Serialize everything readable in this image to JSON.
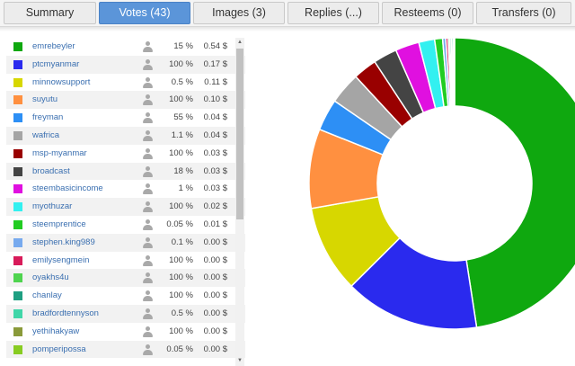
{
  "tabs": [
    {
      "label": "Summary",
      "active": false
    },
    {
      "label": "Votes (43)",
      "active": true
    },
    {
      "label": "Images (3)",
      "active": false
    },
    {
      "label": "Replies (...)",
      "active": false
    },
    {
      "label": "Resteems (0)",
      "active": false
    },
    {
      "label": "Transfers (0)",
      "active": false
    }
  ],
  "votes": [
    {
      "name": "emrebeyler",
      "percent": "15 %",
      "value": "0.54 $",
      "color": "#0fa80f",
      "user_icon": "user-icon"
    },
    {
      "name": "ptcmyanmar",
      "percent": "100 %",
      "value": "0.17 $",
      "color": "#2a2aee",
      "user_icon": "user-icon"
    },
    {
      "name": "minnowsupport",
      "percent": "0.5 %",
      "value": "0.11 $",
      "color": "#d7d700",
      "user_icon": "user-icon"
    },
    {
      "name": "suyutu",
      "percent": "100 %",
      "value": "0.10 $",
      "color": "#ff9040",
      "user_icon": "user-icon"
    },
    {
      "name": "freyman",
      "percent": "55 %",
      "value": "0.04 $",
      "color": "#2d8ff5",
      "user_icon": "user-icon"
    },
    {
      "name": "wafrica",
      "percent": "1.1 %",
      "value": "0.04 $",
      "color": "#a5a5a5",
      "user_icon": "user-icon"
    },
    {
      "name": "msp-myanmar",
      "percent": "100 %",
      "value": "0.03 $",
      "color": "#990000",
      "user_icon": "user-icon"
    },
    {
      "name": "broadcast",
      "percent": "18 %",
      "value": "0.03 $",
      "color": "#444444",
      "user_icon": "user-icon"
    },
    {
      "name": "steembasicincome",
      "percent": "1 %",
      "value": "0.03 $",
      "color": "#e010e0",
      "user_icon": "user-icon"
    },
    {
      "name": "myothuzar",
      "percent": "100 %",
      "value": "0.02 $",
      "color": "#33f0f0",
      "user_icon": "user-icon"
    },
    {
      "name": "steemprentice",
      "percent": "0.05 %",
      "value": "0.01 $",
      "color": "#22cc22",
      "user_icon": "user-icon"
    },
    {
      "name": "stephen.king989",
      "percent": "0.1 %",
      "value": "0.00 $",
      "color": "#77aaee",
      "user_icon": "user-icon"
    },
    {
      "name": "emilysengmein",
      "percent": "100 %",
      "value": "0.00 $",
      "color": "#d81b5a",
      "user_icon": "user-icon"
    },
    {
      "name": "oyakhs4u",
      "percent": "100 %",
      "value": "0.00 $",
      "color": "#4fd44f",
      "user_icon": "user-icon"
    },
    {
      "name": "chanlay",
      "percent": "100 %",
      "value": "0.00 $",
      "color": "#1f9f82",
      "user_icon": "user-icon"
    },
    {
      "name": "bradfordtennyson",
      "percent": "0.5 %",
      "value": "0.00 $",
      "color": "#3fd6a8",
      "user_icon": "user-icon"
    },
    {
      "name": "yethihakyaw",
      "percent": "100 %",
      "value": "0.00 $",
      "color": "#8a9a3a",
      "user_icon": "user-icon"
    },
    {
      "name": "pomperipossa",
      "percent": "0.05 %",
      "value": "0.00 $",
      "color": "#88cc22",
      "user_icon": "user-icon"
    }
  ],
  "scrollbar": {
    "up_icon": "scroll-up-arrow-icon",
    "down_icon": "scroll-down-arrow-icon"
  },
  "chart_data": {
    "type": "pie",
    "donut": true,
    "slices": [
      {
        "value": 0.54,
        "color": "#0fa80f"
      },
      {
        "value": 0.17,
        "color": "#2a2aee"
      },
      {
        "value": 0.11,
        "color": "#d7d700"
      },
      {
        "value": 0.1,
        "color": "#ff9040"
      },
      {
        "value": 0.04,
        "color": "#2d8ff5"
      },
      {
        "value": 0.04,
        "color": "#a5a5a5"
      },
      {
        "value": 0.03,
        "color": "#990000"
      },
      {
        "value": 0.03,
        "color": "#444444"
      },
      {
        "value": 0.03,
        "color": "#e010e0"
      },
      {
        "value": 0.02,
        "color": "#33f0f0"
      },
      {
        "value": 0.01,
        "color": "#22cc22"
      },
      {
        "value": 0.004,
        "color": "#77aaee"
      },
      {
        "value": 0.003,
        "color": "#d81b5a"
      },
      {
        "value": 0.002,
        "color": "#4fd44f"
      },
      {
        "value": 0.002,
        "color": "#1f9f82"
      },
      {
        "value": 0.002,
        "color": "#3fd6a8"
      },
      {
        "value": 0.001,
        "color": "#8a9a3a"
      },
      {
        "value": 0.001,
        "color": "#88cc22"
      }
    ]
  }
}
